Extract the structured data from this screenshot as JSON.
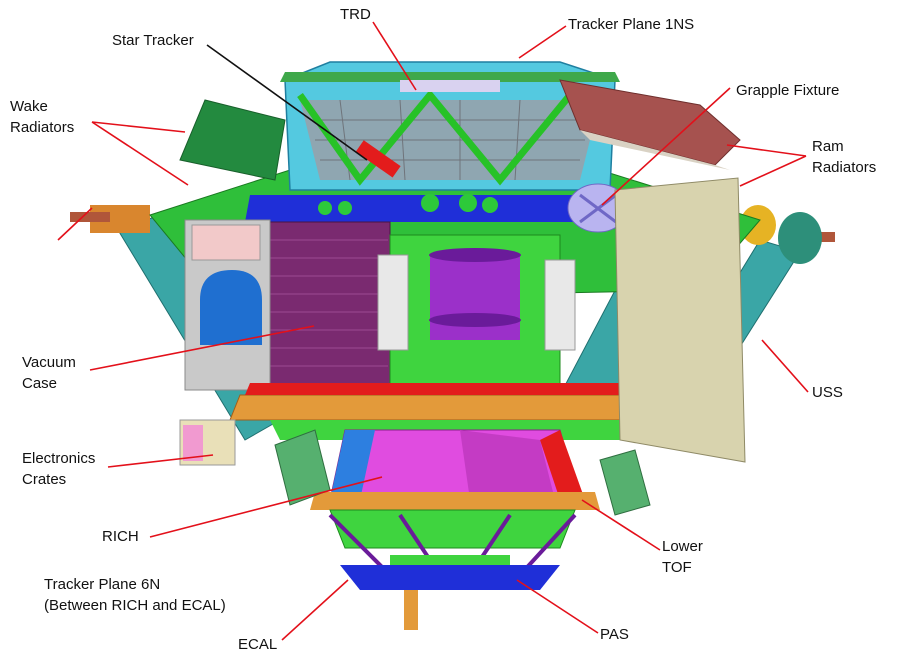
{
  "colors": {
    "leader": "#e3101a",
    "leader_star_tracker": "#111111"
  },
  "labels": {
    "trd": "TRD",
    "tracker_plane_1ns": "Tracker Plane 1NS",
    "star_tracker": "Star Tracker",
    "grapple_fixture": "Grapple Fixture",
    "wake_radiators": [
      "Wake",
      "Radiators"
    ],
    "ram_radiators": [
      "Ram",
      "Radiators"
    ],
    "vacuum_case": [
      "Vacuum",
      "Case"
    ],
    "uss": "USS",
    "electronics_crates": [
      "Electronics",
      "Crates"
    ],
    "rich": "RICH",
    "lower_tof": [
      "Lower",
      "TOF"
    ],
    "tracker_plane_6n": [
      "Tracker Plane 6N",
      "(Between RICH and ECAL)"
    ],
    "ecal": "ECAL",
    "pas": "PAS"
  }
}
